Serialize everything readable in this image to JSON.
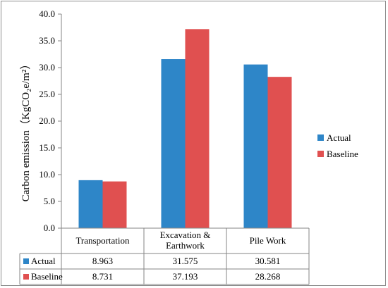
{
  "chart_data": {
    "type": "bar",
    "categories": [
      "Transportation",
      "Excavation & Earthwork",
      "Pile Work"
    ],
    "category_lines": [
      [
        "Transportation"
      ],
      [
        "Excavation &",
        "Earthwork"
      ],
      [
        "Pile Work"
      ]
    ],
    "series": [
      {
        "name": "Actual",
        "values": [
          8.963,
          31.575,
          30.581
        ],
        "color": "#2E86C8"
      },
      {
        "name": "Baseline",
        "values": [
          8.731,
          37.193,
          28.268
        ],
        "color": "#E05050"
      }
    ],
    "table_values": [
      [
        "8.963",
        "31.575",
        "30.581"
      ],
      [
        "8.731",
        "37.193",
        "28.268"
      ]
    ],
    "ylabel": "Carbon emission（KgCO₂e/m²）",
    "ylim": [
      0,
      40
    ],
    "y_ticks": [
      "0.0",
      "5.0",
      "10.0",
      "15.0",
      "20.0",
      "25.0",
      "30.0",
      "35.0",
      "40.0"
    ],
    "grid": false,
    "legend_position": "right",
    "data_table": true
  }
}
